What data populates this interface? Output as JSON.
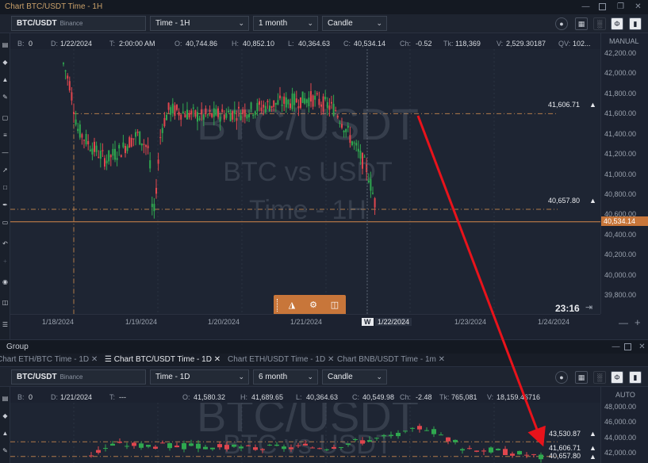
{
  "window": {
    "title": "Chart BTC/USDT Time - 1H"
  },
  "top_chart": {
    "symbol": "BTC/USDT",
    "exchange": "Binance",
    "interval": "Time - 1H",
    "range": "1 month",
    "chart_type": "Candle",
    "scale_mode": "MANUAL",
    "ohlc": {
      "b_label": "B:",
      "b_value": "0",
      "d_label": "D:",
      "d_value": "1/22/2024",
      "t_label": "T:",
      "t_value": "2:00:00 AM",
      "o_label": "O:",
      "o_value": "40,744.86",
      "h_label": "H:",
      "h_value": "40,852.10",
      "l_label": "L:",
      "l_value": "40,364.63",
      "c_label": "C:",
      "c_value": "40,534.14",
      "ch_label": "Ch:",
      "ch_value": "-0.52",
      "tk_label": "Tk:",
      "tk_value": "118,369",
      "v_label": "V:",
      "v_value": "2,529.30187",
      "qv_label": "QV:",
      "qv_value": "102..."
    },
    "watermark": {
      "line1": "BTC/USDT",
      "line2": "BTC vs USDT",
      "line3": "Time - 1H"
    },
    "y_labels": [
      "42,200.00",
      "42,000.00",
      "41,800.00",
      "41,600.00",
      "41,400.00",
      "41,200.00",
      "41,000.00",
      "40,800.00",
      "40,600.00",
      "40,400.00",
      "40,200.00",
      "40,000.00",
      "39,800.00"
    ],
    "x_labels": [
      "1/18/2024",
      "1/19/2024",
      "1/20/2024",
      "1/21/2024",
      "1/22/2024",
      "1/23/2024",
      "1/24/2024"
    ],
    "week_marker": "W",
    "alert1": "41,606.71",
    "alert2": "40,657.80",
    "last_price": "40,534.14",
    "countdown": "23:16",
    "colors": {
      "up": "#2fa84f",
      "down": "#e0464e",
      "alert_line": "#b07a4a",
      "last_line": "#d4874a"
    }
  },
  "group": {
    "title": "Group",
    "tabs": [
      {
        "label": "Chart ETH/BTC Time - 1D",
        "close": "✕"
      },
      {
        "label": "Chart BTC/USDT Time - 1D",
        "close": "✕"
      },
      {
        "label": "Chart ETH/USDT Time - 1D",
        "close": "✕"
      },
      {
        "label": "Chart BNB/USDT Time - 1m",
        "close": "✕"
      }
    ]
  },
  "bottom_chart": {
    "symbol": "BTC/USDT",
    "exchange": "Binance",
    "interval": "Time - 1D",
    "range": "6 month",
    "chart_type": "Candle",
    "scale_mode": "AUTO",
    "ohlc": {
      "b_label": "B:",
      "b_value": "0",
      "d_label": "D:",
      "d_value": "1/21/2024",
      "t_label": "T:",
      "t_value": "---",
      "o_label": "O:",
      "o_value": "41,580.32",
      "h_label": "H:",
      "h_value": "41,689.65",
      "l_label": "L:",
      "l_value": "40,364.63",
      "c_label": "C:",
      "c_value": "40,549.98",
      "ch_label": "Ch:",
      "ch_value": "-2.48",
      "tk_label": "Tk:",
      "tk_value": "765,081",
      "v_label": "V:",
      "v_value": "18,159.46716"
    },
    "watermark": {
      "line1": "BTC/USDT",
      "line2": "BTC vs USDT"
    },
    "y_labels": [
      "48,000.00",
      "46,000.00",
      "44,000.00",
      "42,000.00"
    ],
    "alert0": "43,530.87",
    "alert1": "41,606.71",
    "alert2": "40,657.80"
  },
  "icons": {
    "chevron": "chevron-down-icon",
    "bell": "bell-icon",
    "lock": "lock-icon",
    "gear": "gear-icon",
    "trash": "trash-icon",
    "arrow": "annotation-arrow"
  }
}
